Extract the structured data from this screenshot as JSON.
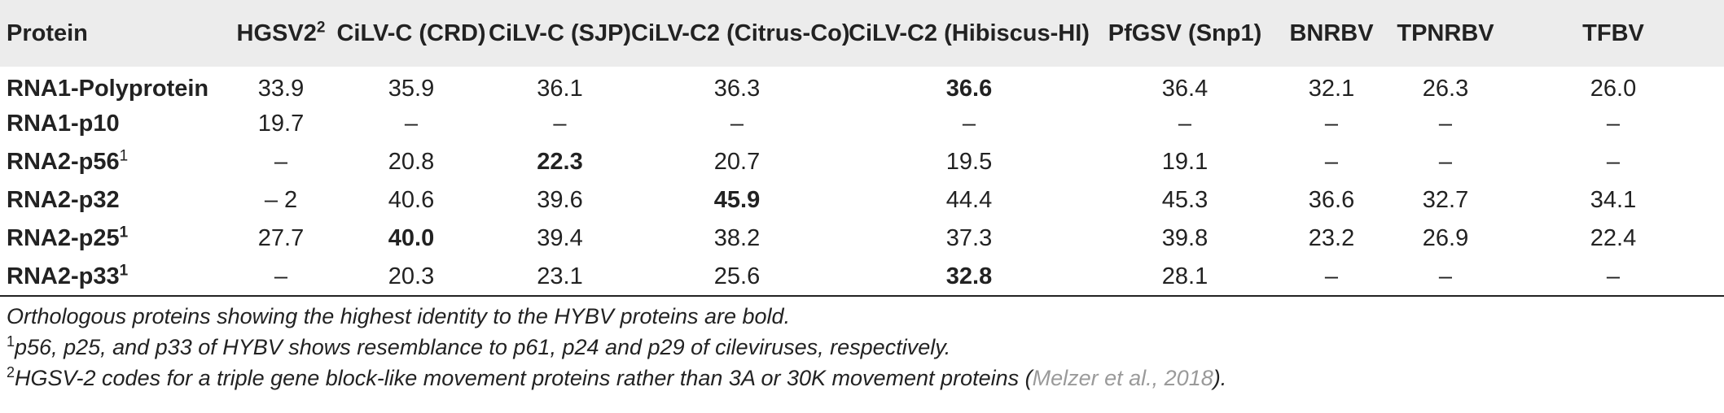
{
  "table": {
    "headers": [
      {
        "label": "Protein",
        "sup": ""
      },
      {
        "label": "HGSV2",
        "sup": "2"
      },
      {
        "label": "CiLV-C (CRD)",
        "sup": ""
      },
      {
        "label": "CiLV-C (SJP)",
        "sup": ""
      },
      {
        "label": "CiLV-C2 (Citrus-Co)",
        "sup": ""
      },
      {
        "label": "CiLV-C2 (Hibiscus-HI)",
        "sup": ""
      },
      {
        "label": "PfGSV (Snp1)",
        "sup": ""
      },
      {
        "label": "BNRBV",
        "sup": ""
      },
      {
        "label": "TPNRBV",
        "sup": ""
      },
      {
        "label": "TFBV",
        "sup": ""
      }
    ],
    "rows": [
      {
        "protein": "RNA1-Polyprotein",
        "sup": "",
        "values": [
          "33.9",
          "35.9",
          "36.1",
          "36.3",
          "36.6",
          "36.4",
          "32.1",
          "26.3",
          "26.0"
        ],
        "bold_index": 4
      },
      {
        "protein": "RNA1-p10",
        "sup": "",
        "values": [
          "19.7",
          "–",
          "–",
          "–",
          "–",
          "–",
          "–",
          "–",
          "–"
        ],
        "bold_index": -1
      },
      {
        "protein": "RNA2-p56",
        "sup": "1",
        "values": [
          "–",
          "20.8",
          "22.3",
          "20.7",
          "19.5",
          "19.1",
          "–",
          "–",
          "–"
        ],
        "bold_index": 2
      },
      {
        "protein": "RNA2-p32",
        "sup": "",
        "values": [
          "– 2",
          "40.6",
          "39.6",
          "45.9",
          "44.4",
          "45.3",
          "36.6",
          "32.7",
          "34.1"
        ],
        "bold_index": 3
      },
      {
        "protein": "RNA2-p25",
        "sup": "1",
        "values": [
          "27.7",
          "40.0",
          "39.4",
          "38.2",
          "37.3",
          "39.8",
          "23.2",
          "26.9",
          "22.4"
        ],
        "bold_index": 1
      },
      {
        "protein": "RNA2-p33",
        "sup": "1",
        "values": [
          "–",
          "20.3",
          "23.1",
          "25.6",
          "32.8",
          "28.1",
          "–",
          "–",
          "–"
        ],
        "bold_index": 4
      }
    ]
  },
  "footnotes": {
    "main": "Orthologous proteins showing the highest identity to the HYBV proteins are bold.",
    "note1_mark": "1",
    "note1_text": "p56, p25, and p33 of HYBV shows resemblance to p61, p24 and p29 of cileviruses, respectively.",
    "note2_mark": "2",
    "note2_text": "HGSV-2 codes for a triple gene block-like movement proteins rather than 3A or 30K movement proteins (",
    "note2_citation": "Melzer et al., 2018",
    "note2_end": ")."
  }
}
